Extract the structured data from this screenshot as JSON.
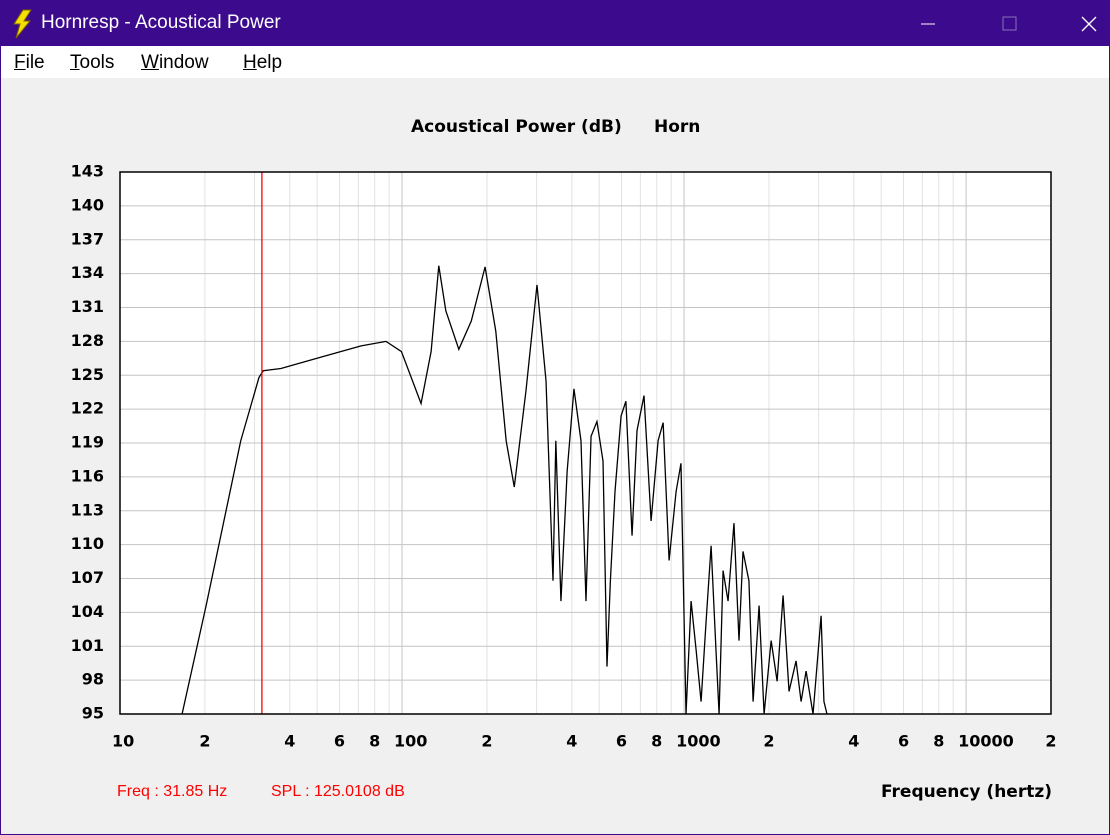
{
  "window": {
    "title": "Hornresp - Acoustical Power"
  },
  "menu": [
    "File",
    "Tools",
    "Window",
    "Help"
  ],
  "chart_data": {
    "type": "line",
    "title": "Acoustical Power (dB)",
    "chart_name": "Horn",
    "x_label": "Frequency (hertz)",
    "xscale": "log",
    "xlim": [
      10,
      20000
    ],
    "ylim": [
      95,
      143
    ],
    "xticks": [
      10,
      {
        "value": 20,
        "label": "2"
      },
      {
        "value": 40,
        "label": "4"
      },
      {
        "value": 60,
        "label": "6"
      },
      {
        "value": 80,
        "label": "8"
      },
      100,
      {
        "value": 200,
        "label": "2"
      },
      {
        "value": 400,
        "label": "4"
      },
      {
        "value": 600,
        "label": "6"
      },
      {
        "value": 800,
        "label": "8"
      },
      1000,
      {
        "value": 2000,
        "label": "2"
      },
      {
        "value": 4000,
        "label": "4"
      },
      {
        "value": 6000,
        "label": "6"
      },
      {
        "value": 8000,
        "label": "8"
      },
      10000,
      {
        "value": 20000,
        "label": "2"
      }
    ],
    "x_minor_grid": [
      30,
      50,
      70,
      90,
      300,
      500,
      700,
      900,
      3000,
      5000,
      7000,
      9000
    ],
    "yticks": [
      95,
      98,
      101,
      104,
      107,
      110,
      113,
      116,
      119,
      122,
      125,
      128,
      131,
      134,
      137,
      140,
      143
    ],
    "grid": true,
    "color": "#000000",
    "x": [
      16.6,
      20.2,
      26.8,
      31.1,
      32.2,
      37.2,
      51.6,
      71.6,
      87.7,
      99.5,
      116.8,
      126.8,
      135,
      143,
      159,
      176,
      197,
      215,
      234,
      250,
      275,
      301,
      324,
      343,
      351,
      366,
      385,
      407,
      431,
      449,
      468,
      491,
      516,
      533,
      548,
      569,
      598,
      622,
      654,
      681,
      721,
      764,
      809,
      843,
      885,
      937,
      975,
      1016,
      1059,
      1104,
      1149,
      1197,
      1247,
      1298,
      1331,
      1375,
      1432,
      1503,
      1566,
      1618,
      1698,
      1757,
      1845,
      1922,
      2036,
      2138,
      2244,
      2356,
      2495,
      2600,
      2708,
      2866,
      3061,
      3133,
      3212
    ],
    "values": [
      95,
      104.6,
      119.2,
      124.8,
      125.4,
      125.6,
      126.6,
      127.6,
      128.0,
      127.1,
      122.5,
      127.1,
      134.7,
      130.7,
      127.3,
      129.8,
      134.6,
      128.9,
      119.2,
      115.1,
      123.6,
      133.0,
      124.5,
      106.8,
      119.2,
      105.0,
      116.5,
      123.8,
      119.2,
      105.0,
      119.6,
      120.9,
      117.4,
      99.2,
      106.8,
      114.7,
      121.4,
      122.7,
      110.8,
      120.1,
      123.2,
      112.1,
      119.2,
      120.8,
      108.6,
      114.7,
      117.2,
      95,
      105,
      100.6,
      96.1,
      103.2,
      109.9,
      100.6,
      95,
      107.7,
      105,
      111.9,
      101.5,
      109.4,
      106.8,
      96.1,
      104.6,
      95,
      101.5,
      97.9,
      105.5,
      97.0,
      99.7,
      96.1,
      98.8,
      95,
      103.7,
      96.1,
      95
    ],
    "cursor": {
      "freq": 31.85,
      "color": "#ff0000",
      "freq_label": "Freq : 31.85 Hz",
      "spl_label": "SPL : 125.0108 dB"
    }
  }
}
